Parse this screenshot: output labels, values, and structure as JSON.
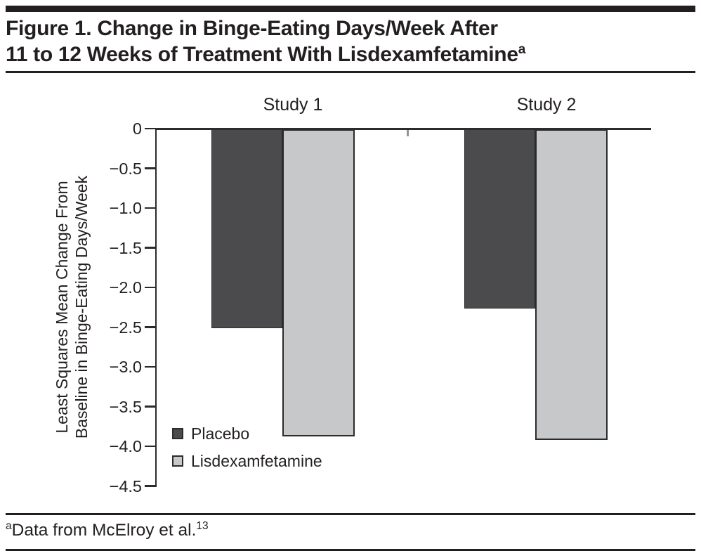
{
  "figure": {
    "title_line1": "Figure 1. Change in Binge-Eating Days/Week After",
    "title_line2": "11 to 12 Weeks of Treatment With Lisdexamfetamine",
    "title_superscript": "a"
  },
  "chart_data": {
    "type": "bar",
    "categories": [
      "Study 1",
      "Study 2"
    ],
    "series": [
      {
        "name": "Placebo",
        "color": "#4b4b4d",
        "values": [
          -2.51,
          -2.26
        ]
      },
      {
        "name": "Lisdexamfetamine",
        "color": "#c7c8ca",
        "values": [
          -3.87,
          -3.92
        ]
      }
    ],
    "ylabel_line1": "Least Squares Mean Change From",
    "ylabel_line2": "Baseline in Binge-Eating Days/Week",
    "ylim": [
      -4.5,
      0
    ],
    "yticks": [
      0,
      -0.5,
      -1.0,
      -1.5,
      -2.0,
      -2.5,
      -3.0,
      -3.5,
      -4.0,
      -4.5
    ],
    "ytick_labels": [
      "0",
      "−0.5",
      "−1.0",
      "−1.5",
      "−2.0",
      "−2.5",
      "−3.0",
      "−3.5",
      "−4.0",
      "−4.5"
    ],
    "grid": "off",
    "legend_position": "inside-bottom-left",
    "axis_color": "#2b2b2d",
    "bar_border_color": "#2b2b2d"
  },
  "footnote": {
    "superscript": "a",
    "text": "Data from McElroy et al.",
    "reference": "13"
  }
}
